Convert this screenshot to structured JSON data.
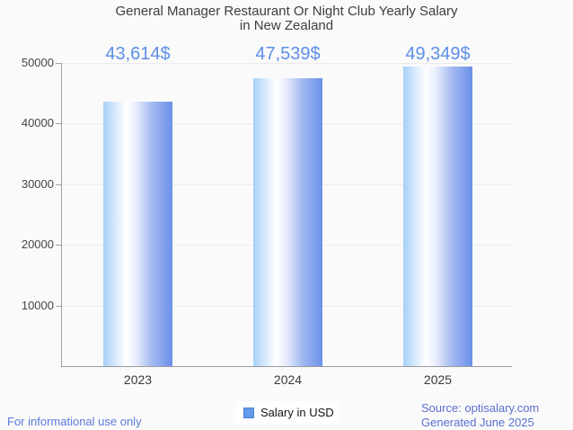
{
  "title": {
    "line1": "General Manager Restaurant Or Night Club Yearly Salary",
    "line2": "in New Zealand"
  },
  "legend": {
    "label": "Salary in USD"
  },
  "footer": {
    "left": "For informational use only",
    "source": "Source: optisalary.com",
    "generated": "Generated June 2025"
  },
  "colors": {
    "bg": "#fafafa",
    "title-color": "#3e3e3e",
    "tick-label-color": "#454545",
    "xlabel-color": "#3a3a3a",
    "grid-color": "#ebebeb",
    "axis-color": "#a0a0a0",
    "value-label-color": "#5d8fe8",
    "bar-left": "#a5d0f8",
    "bar-mid": "#ffffff",
    "bar-right": "#6b90e8",
    "legend-marker": "#639ae9",
    "legend-marker-border": "#4c82d6",
    "footer-left-color": "#5b7ada",
    "footer-right-color": "#5b6fd2"
  },
  "chart_data": {
    "type": "bar",
    "title": "General Manager Restaurant Or Night Club Yearly Salary in New Zealand",
    "categories": [
      "2023",
      "2024",
      "2025"
    ],
    "series": [
      {
        "name": "Salary in USD",
        "values": [
          43614,
          47539,
          49349
        ]
      }
    ],
    "value_labels": [
      "43,614$",
      "47,539$",
      "49,349$"
    ],
    "xlabel": "",
    "ylabel": "",
    "ylim": [
      0,
      50000
    ],
    "ytick_step": 10000,
    "grid": true,
    "legend_position": "bottom"
  }
}
